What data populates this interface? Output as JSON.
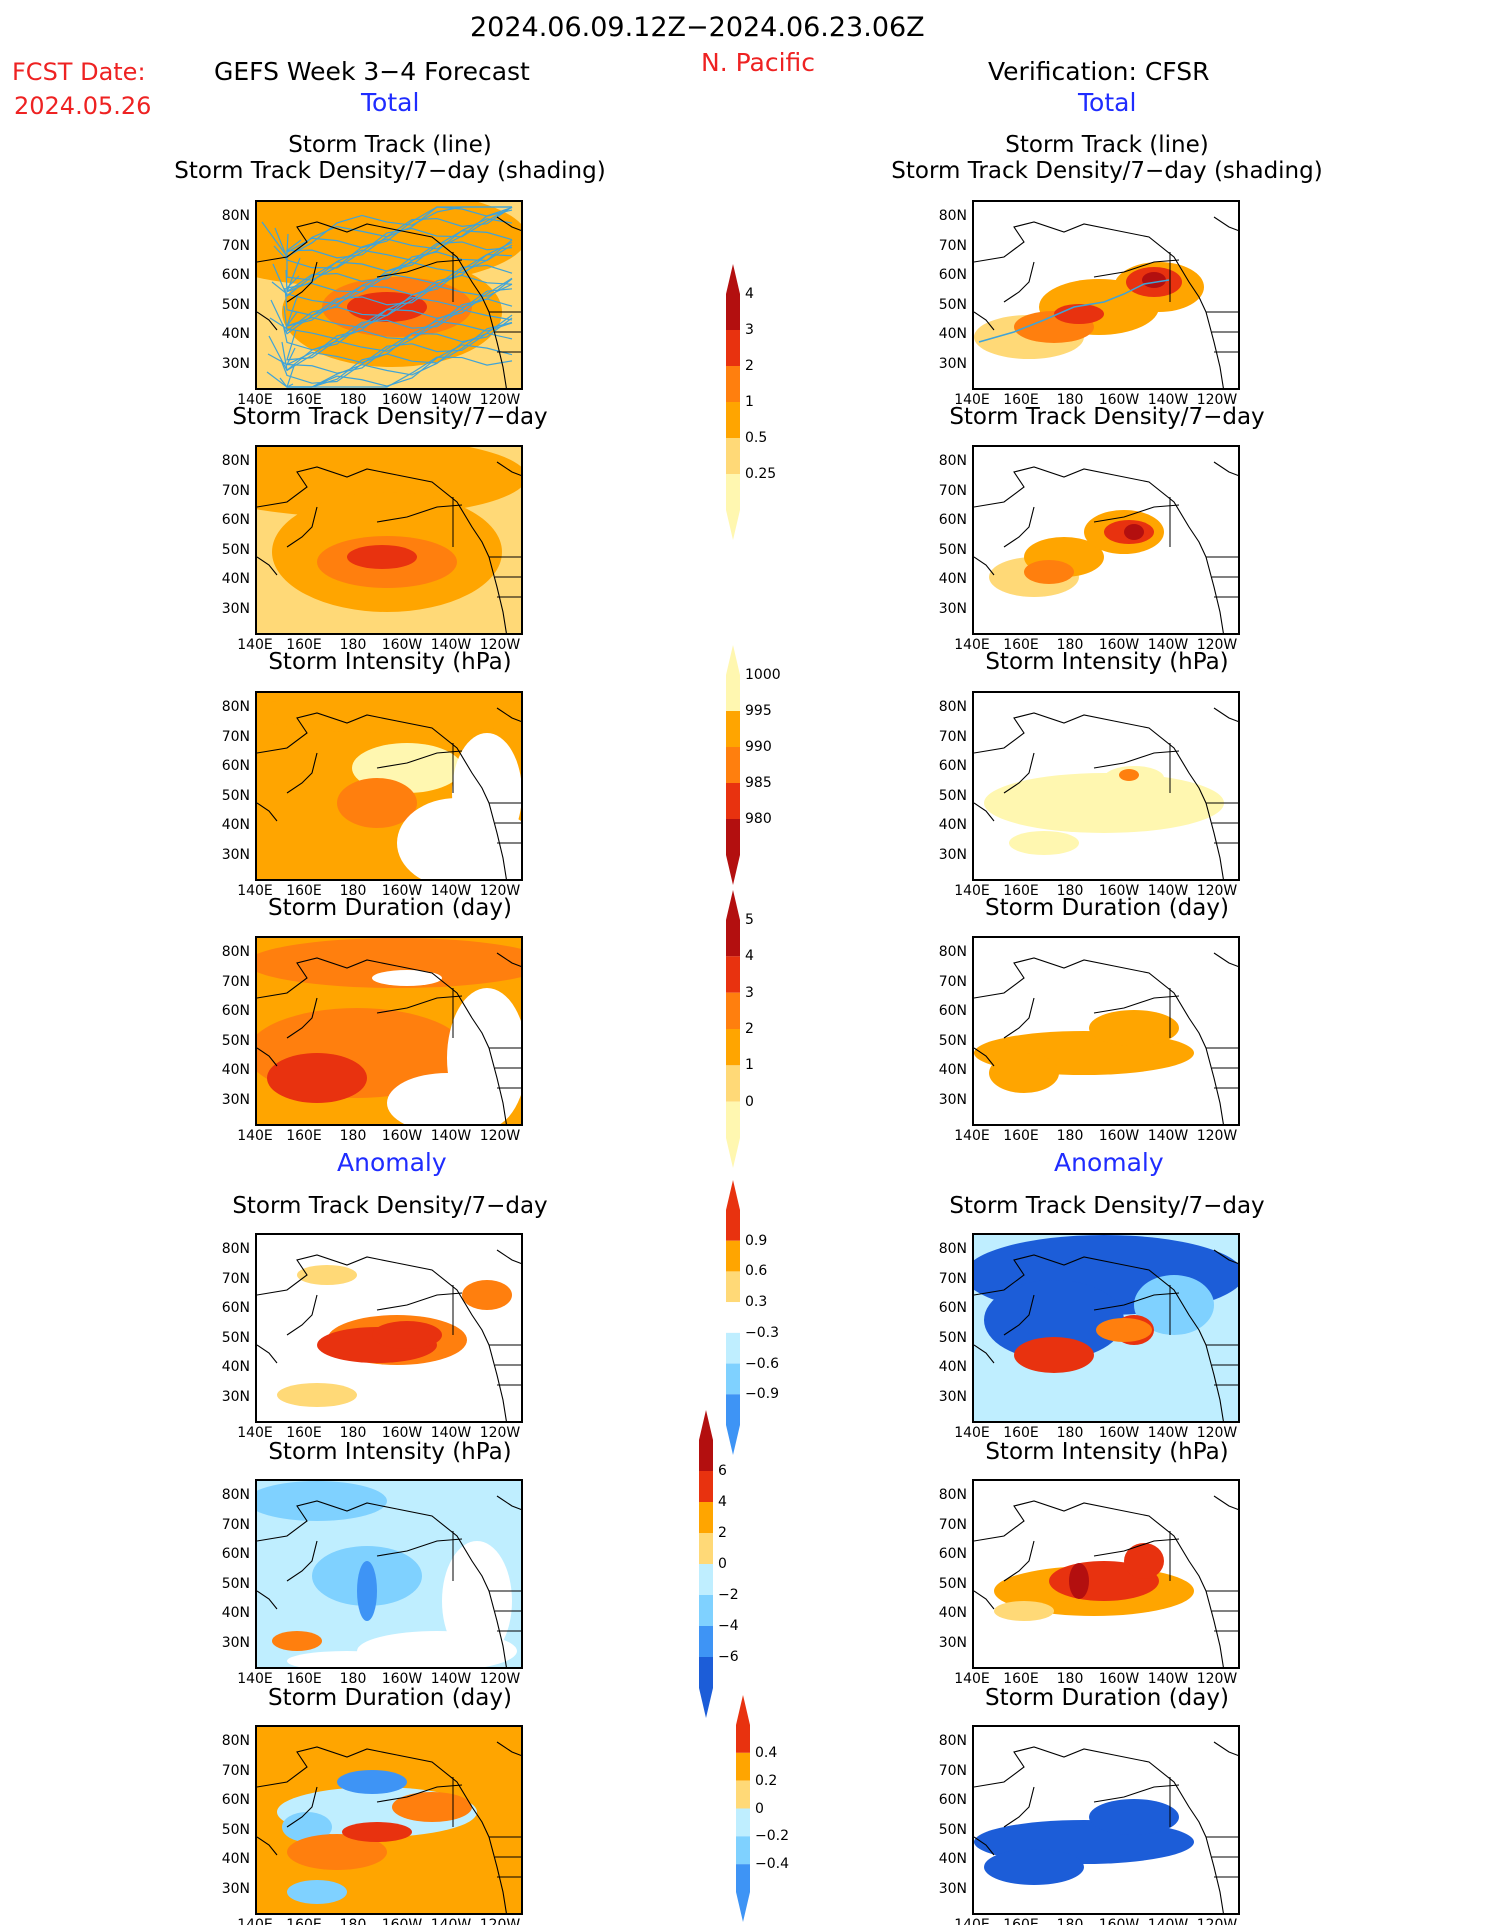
{
  "header": {
    "period": "2024.06.09.12Z−2024.06.23.06Z",
    "region": "N. Pacific",
    "fcst_label": "FCST Date:",
    "fcst_date": "2024.05.26",
    "left_title": "GEFS Week 3−4 Forecast",
    "right_title": "Verification: CFSR",
    "total_left": "Total",
    "total_right": "Total",
    "anomaly_left": "Anomaly",
    "anomaly_right": "Anomaly"
  },
  "colors": {
    "red": "#ee2222",
    "blue": "#1f2cff",
    "o1": "#fff7b0",
    "o2": "#ffd977",
    "o3": "#ffa500",
    "o4": "#ff7f0e",
    "o5": "#e8320f",
    "o6": "#b30f0f",
    "b1": "#bfeeff",
    "b2": "#7fd1ff",
    "b3": "#3e94f5",
    "b4": "#1c5dd8",
    "track": "#3fa3d8"
  },
  "axes": {
    "lat_ticks": [
      "80N",
      "70N",
      "60N",
      "50N",
      "40N",
      "30N"
    ],
    "lon_ticks": [
      "140E",
      "160E",
      "180",
      "160W",
      "140W",
      "120W"
    ]
  },
  "panels": {
    "l1_title_a": "Storm Track (line)",
    "l1_title_b": "Storm Track Density/7−day (shading)",
    "r1_title_a": "Storm Track (line)",
    "r1_title_b": "Storm Track Density/7−day (shading)",
    "l2": "Storm Track Density/7−day",
    "r2": "Storm Track Density/7−day",
    "l3": "Storm Intensity (hPa)",
    "r3": "Storm Intensity (hPa)",
    "l4": "Storm Duration (day)",
    "r4": "Storm Duration (day)",
    "l5": "Storm Track Density/7−day",
    "r5": "Storm Track Density/7−day",
    "l6": "Storm Intensity (hPa)",
    "r6": "Storm Intensity (hPa)",
    "l7": "Storm Duration (day)",
    "r7": "Storm Duration (day)"
  },
  "chart_data": [
    {
      "type": "heatmap",
      "name": "density_total",
      "colorbar_levels": [
        "0.25",
        "0.5",
        "1",
        "2",
        "3",
        "4"
      ]
    },
    {
      "type": "heatmap",
      "name": "intensity_total",
      "colorbar_levels": [
        "1000",
        "995",
        "990",
        "985",
        "980"
      ]
    },
    {
      "type": "heatmap",
      "name": "duration_total",
      "colorbar_levels": [
        "0",
        "1",
        "2",
        "3",
        "4",
        "5"
      ]
    },
    {
      "type": "heatmap",
      "name": "density_anomaly",
      "colorbar_levels": [
        "0.9",
        "0.6",
        "0.3",
        "−0.3",
        "−0.6",
        "−0.9"
      ]
    },
    {
      "type": "heatmap",
      "name": "intensity_anomaly",
      "colorbar_levels": [
        "6",
        "4",
        "2",
        "0",
        "−2",
        "−4",
        "−6"
      ]
    },
    {
      "type": "heatmap",
      "name": "duration_anomaly",
      "colorbar_levels": [
        "0.4",
        "0.2",
        "0",
        "−0.2",
        "−0.4"
      ]
    }
  ]
}
